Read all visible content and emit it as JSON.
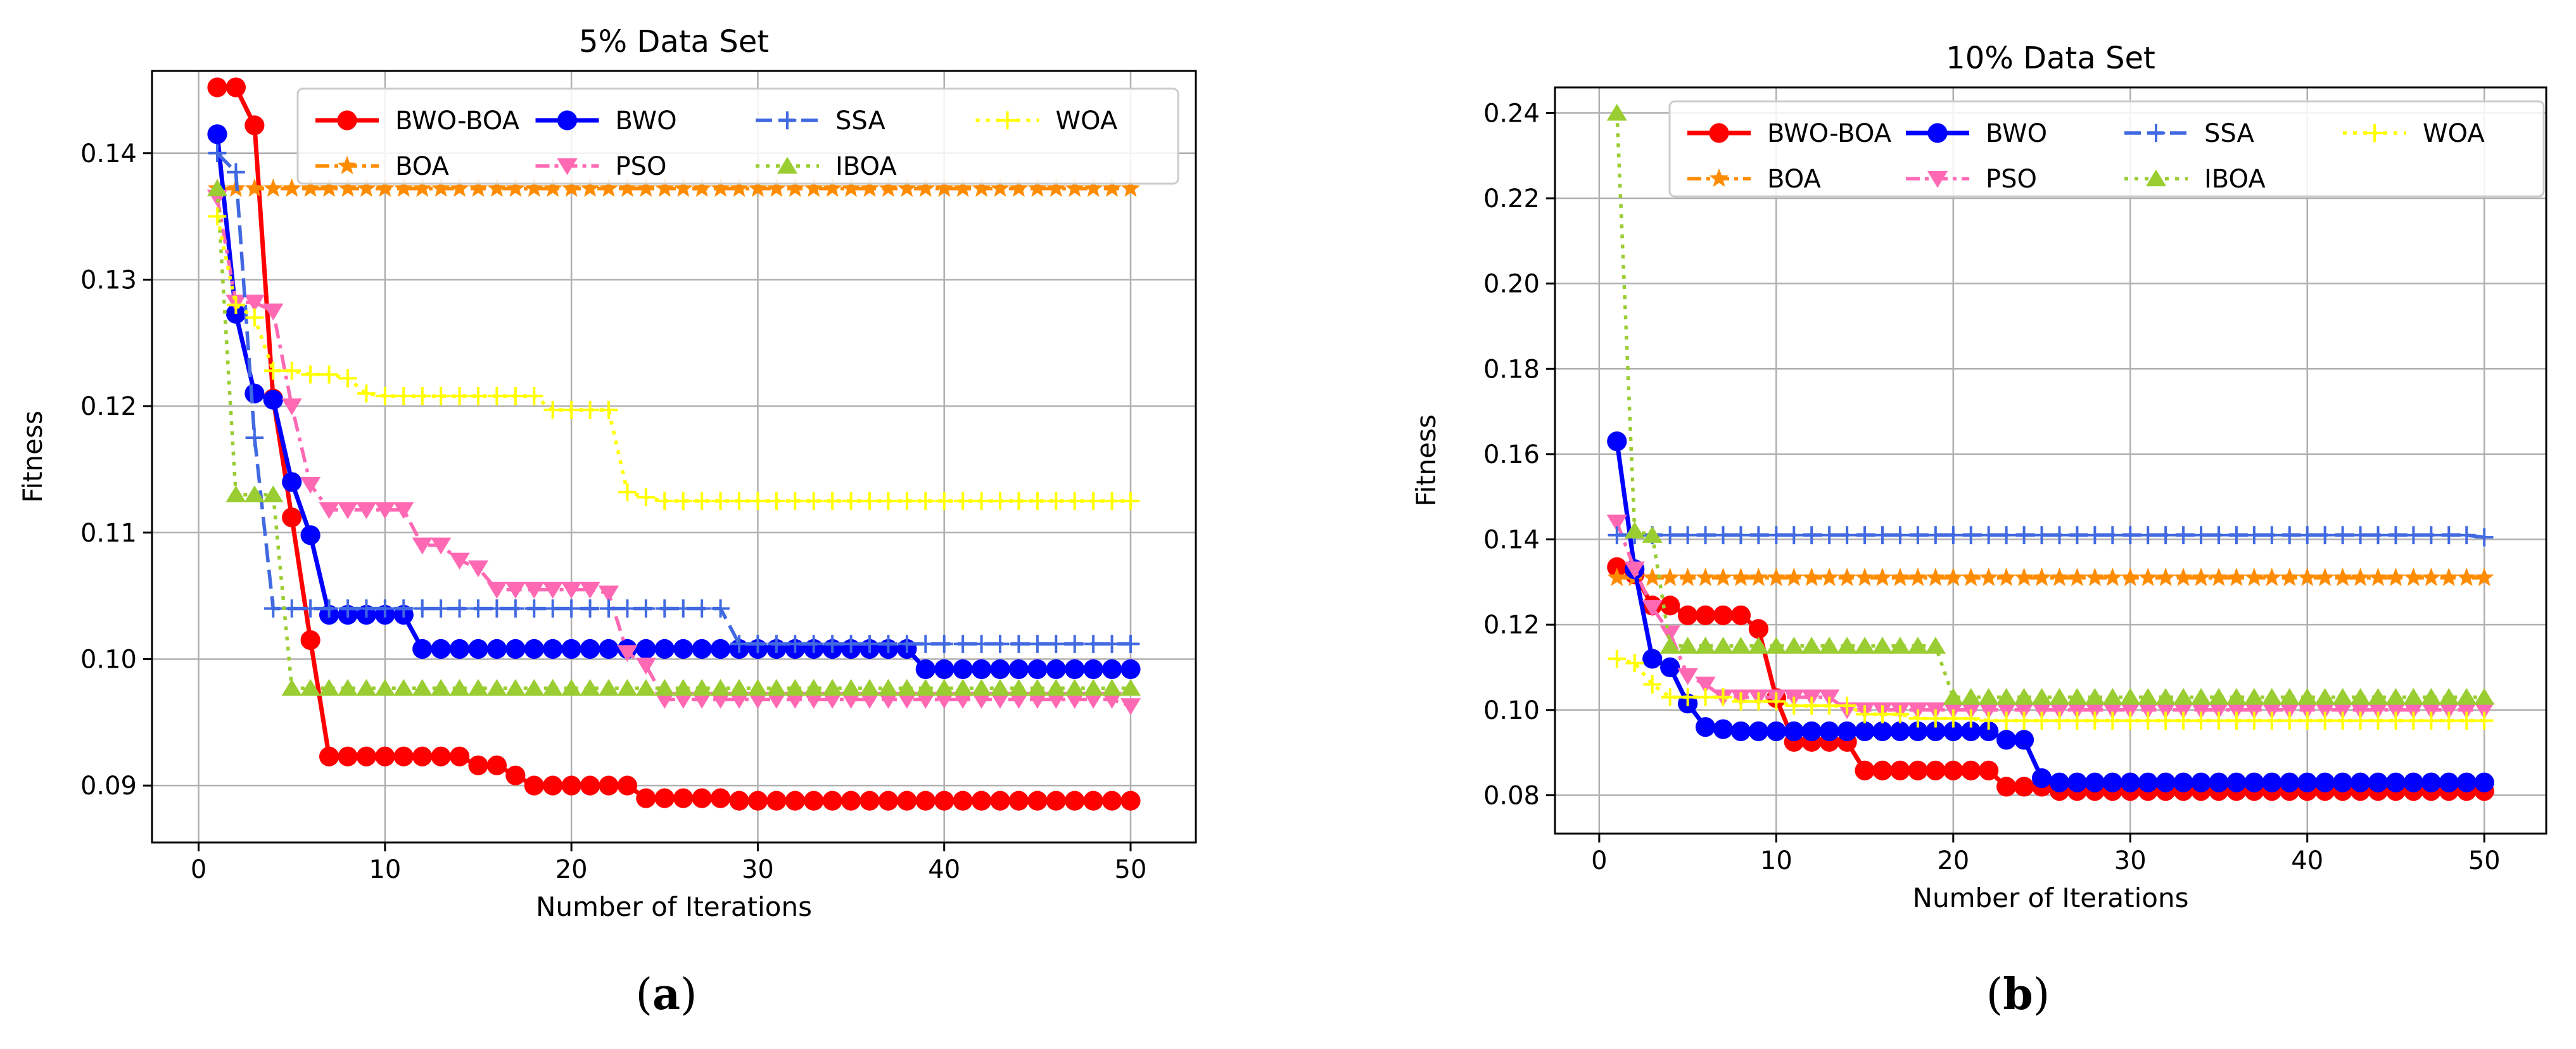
{
  "figure": {
    "captions": [
      {
        "open": "(",
        "letter": "a",
        "close": ")"
      },
      {
        "open": "(",
        "letter": "b",
        "close": ")"
      }
    ]
  },
  "chart_data": [
    {
      "type": "line",
      "title": "5% Data Set",
      "xlabel": "Number of Iterations",
      "ylabel": "Fitness",
      "xlim": [
        -2.5,
        53.5
      ],
      "ylim": [
        0.0855,
        0.1465
      ],
      "xticks": [
        0,
        10,
        20,
        30,
        40,
        50
      ],
      "yticks": [
        0.09,
        0.1,
        0.11,
        0.12,
        0.13,
        0.14
      ],
      "ytick_labels": [
        "0.09",
        "0.10",
        "0.11",
        "0.12",
        "0.13",
        "0.14"
      ],
      "grid": true,
      "legend_position": "top-right",
      "legend_columns": 4,
      "series": [
        {
          "name": "BWO-BOA",
          "color": "#ff0000",
          "marker": "circle",
          "dash": "solid",
          "steps": [
            [
              1,
              0.1452
            ],
            [
              2,
              0.1452
            ],
            [
              3,
              0.1422
            ],
            [
              4,
              0.1206
            ],
            [
              5,
              0.1112
            ],
            [
              6,
              0.1015
            ],
            [
              7,
              0.0923
            ],
            [
              14,
              0.0923
            ],
            [
              15,
              0.0916
            ],
            [
              17,
              0.0908
            ],
            [
              18,
              0.09
            ],
            [
              23,
              0.09
            ],
            [
              24,
              0.089
            ],
            [
              28,
              0.089
            ],
            [
              29,
              0.0888
            ],
            [
              50,
              0.0888
            ]
          ]
        },
        {
          "name": "BOA",
          "color": "#ff8c00",
          "marker": "star",
          "dash": "dashdot",
          "steps": [
            [
              1,
              0.1372
            ],
            [
              50,
              0.1372
            ]
          ]
        },
        {
          "name": "BWO",
          "color": "#0000ff",
          "marker": "circle",
          "dash": "solid",
          "steps": [
            [
              1,
              0.1415
            ],
            [
              2,
              0.1273
            ],
            [
              3,
              0.121
            ],
            [
              4,
              0.1205
            ],
            [
              5,
              0.114
            ],
            [
              6,
              0.1098
            ],
            [
              7,
              0.1035
            ],
            [
              11,
              0.1035
            ],
            [
              12,
              0.1008
            ],
            [
              38,
              0.1008
            ],
            [
              39,
              0.0992
            ],
            [
              50,
              0.0992
            ]
          ]
        },
        {
          "name": "PSO",
          "color": "#ff69b4",
          "marker": "triangle-down",
          "dash": "dashdot",
          "steps": [
            [
              1,
              0.1365
            ],
            [
              2,
              0.1282
            ],
            [
              4,
              0.1275
            ],
            [
              5,
              0.12
            ],
            [
              6,
              0.1138
            ],
            [
              7,
              0.1118
            ],
            [
              11,
              0.1118
            ],
            [
              12,
              0.109
            ],
            [
              14,
              0.1078
            ],
            [
              15,
              0.1072
            ],
            [
              16,
              0.1055
            ],
            [
              22,
              0.1052
            ],
            [
              23,
              0.1005
            ],
            [
              24,
              0.0995
            ],
            [
              25,
              0.0968
            ],
            [
              50,
              0.0963
            ]
          ]
        },
        {
          "name": "SSA",
          "color": "#4169e1",
          "marker": "plus",
          "dash": "dashed",
          "steps": [
            [
              1,
              0.14
            ],
            [
              2,
              0.1385
            ],
            [
              3,
              0.1175
            ],
            [
              4,
              0.104
            ],
            [
              28,
              0.104
            ],
            [
              29,
              0.1012
            ],
            [
              50,
              0.1012
            ]
          ]
        },
        {
          "name": "IBOA",
          "color": "#9acd32",
          "marker": "triangle-up",
          "dash": "dotted",
          "steps": [
            [
              1,
              0.1372
            ],
            [
              2,
              0.113
            ],
            [
              4,
              0.113
            ],
            [
              5,
              0.0977
            ],
            [
              50,
              0.0977
            ]
          ]
        },
        {
          "name": "WOA",
          "color": "#ffff00",
          "marker": "plus",
          "dash": "dotted",
          "steps": [
            [
              1,
              0.135
            ],
            [
              2,
              0.128
            ],
            [
              3,
              0.127
            ],
            [
              4,
              0.1228
            ],
            [
              6,
              0.1225
            ],
            [
              8,
              0.1222
            ],
            [
              9,
              0.121
            ],
            [
              10,
              0.1208
            ],
            [
              18,
              0.1208
            ],
            [
              19,
              0.1197
            ],
            [
              22,
              0.1197
            ],
            [
              23,
              0.1132
            ],
            [
              24,
              0.1128
            ],
            [
              25,
              0.1125
            ],
            [
              50,
              0.1125
            ]
          ]
        }
      ]
    },
    {
      "type": "line",
      "title": "10% Data Set",
      "xlabel": "Number of Iterations",
      "ylabel": "Fitness",
      "xlim": [
        -2.5,
        53.5
      ],
      "ylim": [
        0.071,
        0.246
      ],
      "xticks": [
        0,
        10,
        20,
        30,
        40,
        50
      ],
      "yticks": [
        0.08,
        0.1,
        0.12,
        0.14,
        0.16,
        0.18,
        0.2,
        0.22,
        0.24
      ],
      "ytick_labels": [
        "0.08",
        "0.10",
        "0.12",
        "0.14",
        "0.16",
        "0.18",
        "0.20",
        "0.22",
        "0.24"
      ],
      "grid": true,
      "legend_position": "top-right",
      "legend_columns": 4,
      "series": [
        {
          "name": "BWO-BOA",
          "color": "#ff0000",
          "marker": "circle",
          "dash": "solid",
          "steps": [
            [
              1,
              0.1335
            ],
            [
              2,
              0.1318
            ],
            [
              3,
              0.1245
            ],
            [
              4,
              0.1245
            ],
            [
              5,
              0.1222
            ],
            [
              8,
              0.1222
            ],
            [
              9,
              0.119
            ],
            [
              10,
              0.1028
            ],
            [
              11,
              0.0925
            ],
            [
              14,
              0.0925
            ],
            [
              15,
              0.0858
            ],
            [
              22,
              0.0858
            ],
            [
              23,
              0.082
            ],
            [
              25,
              0.082
            ],
            [
              26,
              0.081
            ],
            [
              50,
              0.081
            ]
          ]
        },
        {
          "name": "BOA",
          "color": "#ff8c00",
          "marker": "star",
          "dash": "dashdot",
          "steps": [
            [
              1,
              0.131
            ],
            [
              50,
              0.131
            ]
          ]
        },
        {
          "name": "BWO",
          "color": "#0000ff",
          "marker": "circle",
          "dash": "solid",
          "steps": [
            [
              1,
              0.163
            ],
            [
              2,
              0.133
            ],
            [
              3,
              0.112
            ],
            [
              4,
              0.11
            ],
            [
              5,
              0.1015
            ],
            [
              6,
              0.096
            ],
            [
              7,
              0.0955
            ],
            [
              8,
              0.095
            ],
            [
              22,
              0.095
            ],
            [
              23,
              0.093
            ],
            [
              24,
              0.093
            ],
            [
              25,
              0.084
            ],
            [
              26,
              0.083
            ],
            [
              50,
              0.083
            ]
          ]
        },
        {
          "name": "PSO",
          "color": "#ff69b4",
          "marker": "triangle-down",
          "dash": "dashdot",
          "steps": [
            [
              1,
              0.144
            ],
            [
              2,
              0.133
            ],
            [
              3,
              0.124
            ],
            [
              4,
              0.118
            ],
            [
              5,
              0.108
            ],
            [
              6,
              0.106
            ],
            [
              7,
              0.103
            ],
            [
              14,
              0.1
            ],
            [
              50,
              0.1
            ]
          ]
        },
        {
          "name": "SSA",
          "color": "#4169e1",
          "marker": "plus",
          "dash": "dashed",
          "steps": [
            [
              1,
              0.141
            ],
            [
              50,
              0.1405
            ]
          ]
        },
        {
          "name": "IBOA",
          "color": "#9acd32",
          "marker": "triangle-up",
          "dash": "dotted",
          "steps": [
            [
              1,
              0.24
            ],
            [
              2,
              0.142
            ],
            [
              3,
              0.141
            ],
            [
              4,
              0.115
            ],
            [
              19,
              0.115
            ],
            [
              20,
              0.103
            ],
            [
              50,
              0.103
            ]
          ]
        },
        {
          "name": "WOA",
          "color": "#ffff00",
          "marker": "plus",
          "dash": "dotted",
          "steps": [
            [
              1,
              0.112
            ],
            [
              2,
              0.111
            ],
            [
              3,
              0.106
            ],
            [
              4,
              0.103
            ],
            [
              8,
              0.102
            ],
            [
              11,
              0.101
            ],
            [
              15,
              0.099
            ],
            [
              18,
              0.098
            ],
            [
              22,
              0.0975
            ],
            [
              50,
              0.0975
            ]
          ]
        }
      ]
    }
  ]
}
